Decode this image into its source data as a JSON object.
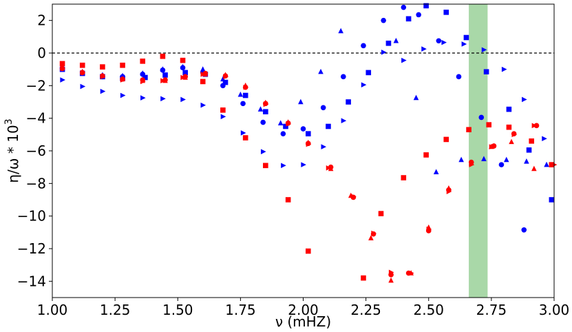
{
  "chart_data": {
    "type": "scatter",
    "xlabel": "ν (mHZ)",
    "ylabel": "η/ω * 10",
    "ylabel_exp": "3",
    "xlim": [
      1.0,
      3.0
    ],
    "ylim": [
      -15,
      3
    ],
    "xticks": [
      1.0,
      1.25,
      1.5,
      1.75,
      2.0,
      2.25,
      2.5,
      2.75,
      3.0
    ],
    "xtick_labels": [
      "1.00",
      "1.25",
      "1.50",
      "1.75",
      "2.00",
      "2.25",
      "2.50",
      "2.75",
      "3.00"
    ],
    "yticks": [
      2,
      0,
      -2,
      -4,
      -6,
      -8,
      -10,
      -12,
      -14
    ],
    "ytick_labels": [
      "2",
      "0",
      "−2",
      "−4",
      "−6",
      "−8",
      "−10",
      "−12",
      "−14"
    ],
    "reference_line": {
      "y": 0,
      "style": "dashed",
      "color": "#000000"
    },
    "shaded_band": {
      "x_start": 2.66,
      "x_end": 2.735,
      "color": "#a9d8a8"
    },
    "grid": false,
    "series": [
      {
        "color": "#0000ff",
        "marker": "circle",
        "points": [
          [
            1.04,
            -0.95
          ],
          [
            1.12,
            -1.2
          ],
          [
            1.2,
            -1.45
          ],
          [
            1.28,
            -1.45
          ],
          [
            1.36,
            -1.3
          ],
          [
            1.44,
            -1.05
          ],
          [
            1.52,
            -0.9
          ],
          [
            1.6,
            -1.2
          ],
          [
            1.68,
            -2.0
          ],
          [
            1.76,
            -3.1
          ],
          [
            1.84,
            -4.25
          ],
          [
            1.92,
            -4.95
          ],
          [
            2.0,
            -4.65
          ],
          [
            2.08,
            -3.35
          ],
          [
            2.16,
            -1.45
          ],
          [
            2.24,
            0.45
          ],
          [
            2.32,
            2.0
          ],
          [
            2.4,
            2.8
          ],
          [
            2.46,
            2.35
          ],
          [
            2.54,
            0.75
          ],
          [
            2.62,
            -1.45
          ],
          [
            2.71,
            -3.95
          ],
          [
            2.79,
            -6.85
          ],
          [
            2.88,
            -10.85
          ]
        ]
      },
      {
        "color": "#0000ff",
        "marker": "square",
        "points": [
          [
            1.04,
            -1.0
          ],
          [
            1.12,
            -1.25
          ],
          [
            1.2,
            -1.45
          ],
          [
            1.28,
            -1.55
          ],
          [
            1.37,
            -1.5
          ],
          [
            1.45,
            -1.35
          ],
          [
            1.53,
            -1.2
          ],
          [
            1.61,
            -1.3
          ],
          [
            1.69,
            -1.8
          ],
          [
            1.77,
            -2.6
          ],
          [
            1.85,
            -3.6
          ],
          [
            1.93,
            -4.5
          ],
          [
            2.02,
            -4.95
          ],
          [
            2.1,
            -4.5
          ],
          [
            2.18,
            -3.0
          ],
          [
            2.26,
            -1.2
          ],
          [
            2.34,
            0.6
          ],
          [
            2.42,
            2.1
          ],
          [
            2.49,
            2.9
          ],
          [
            2.57,
            2.5
          ],
          [
            2.65,
            0.95
          ],
          [
            2.73,
            -1.15
          ],
          [
            2.82,
            -3.45
          ],
          [
            2.9,
            -5.95
          ],
          [
            2.99,
            -9.0
          ]
        ]
      },
      {
        "color": "#0000ff",
        "marker": "triangle-up",
        "points": [
          [
            1.04,
            -0.9
          ],
          [
            1.12,
            -1.15
          ],
          [
            1.2,
            -1.35
          ],
          [
            1.28,
            -1.4
          ],
          [
            1.36,
            -1.25
          ],
          [
            1.44,
            -1.0
          ],
          [
            1.52,
            -0.85
          ],
          [
            1.6,
            -1.0
          ],
          [
            1.68,
            -1.6
          ],
          [
            1.75,
            -2.55
          ],
          [
            1.83,
            -3.45
          ],
          [
            1.91,
            -4.3
          ],
          [
            1.99,
            -3.0
          ],
          [
            2.07,
            -1.15
          ],
          [
            2.15,
            1.35
          ],
          [
            2.37,
            0.75
          ],
          [
            2.45,
            -2.75
          ],
          [
            2.53,
            -7.3
          ],
          [
            2.63,
            -6.55
          ],
          [
            2.72,
            -6.5
          ],
          [
            2.81,
            -6.55
          ],
          [
            2.89,
            -6.65
          ],
          [
            2.97,
            -6.85
          ]
        ]
      },
      {
        "color": "#0000ff",
        "marker": "triangle-right",
        "points": [
          [
            1.04,
            -1.65
          ],
          [
            1.12,
            -2.05
          ],
          [
            1.2,
            -2.35
          ],
          [
            1.28,
            -2.6
          ],
          [
            1.36,
            -2.75
          ],
          [
            1.44,
            -2.8
          ],
          [
            1.52,
            -2.85
          ],
          [
            1.6,
            -3.2
          ],
          [
            1.68,
            -3.9
          ],
          [
            1.76,
            -4.9
          ],
          [
            1.84,
            -6.05
          ],
          [
            1.92,
            -6.9
          ],
          [
            2.0,
            -6.85
          ],
          [
            2.08,
            -5.75
          ],
          [
            2.16,
            -4.15
          ],
          [
            2.24,
            -1.95
          ],
          [
            2.32,
            0.05
          ],
          [
            2.4,
            -0.45
          ],
          [
            2.48,
            0.25
          ],
          [
            2.56,
            0.65
          ],
          [
            2.64,
            0.55
          ],
          [
            2.72,
            0.2
          ],
          [
            2.8,
            -1.0
          ],
          [
            2.88,
            -2.85
          ],
          [
            2.96,
            -5.25
          ]
        ]
      },
      {
        "color": "#ff0000",
        "marker": "circle",
        "points": [
          [
            1.04,
            -0.95
          ],
          [
            1.12,
            -1.2
          ],
          [
            1.2,
            -1.4
          ],
          [
            1.28,
            -1.6
          ],
          [
            1.36,
            -1.65
          ],
          [
            1.45,
            -1.65
          ],
          [
            1.53,
            -1.45
          ],
          [
            1.61,
            -1.25
          ],
          [
            1.69,
            -1.4
          ],
          [
            1.77,
            -2.1
          ],
          [
            1.85,
            -3.1
          ],
          [
            1.94,
            -4.3
          ],
          [
            2.02,
            -5.55
          ],
          [
            2.11,
            -7.0
          ],
          [
            2.2,
            -8.85
          ],
          [
            2.28,
            -11.1
          ],
          [
            2.35,
            -13.6
          ],
          [
            2.42,
            -13.5
          ],
          [
            2.5,
            -10.9
          ],
          [
            2.58,
            -8.4
          ],
          [
            2.67,
            -6.7
          ],
          [
            2.76,
            -5.7
          ],
          [
            2.84,
            -4.95
          ],
          [
            2.93,
            -4.45
          ]
        ]
      },
      {
        "color": "#ff0000",
        "marker": "square",
        "points": [
          [
            1.04,
            -0.65
          ],
          [
            1.12,
            -0.75
          ],
          [
            1.2,
            -0.85
          ],
          [
            1.28,
            -0.75
          ],
          [
            1.36,
            -0.5
          ],
          [
            1.44,
            -0.2
          ],
          [
            1.52,
            -0.45
          ],
          [
            1.6,
            -1.75
          ],
          [
            1.68,
            -3.5
          ],
          [
            1.77,
            -5.2
          ],
          [
            1.85,
            -6.9
          ],
          [
            1.94,
            -9.0
          ],
          [
            2.02,
            -12.15
          ],
          [
            2.24,
            -13.8
          ],
          [
            2.31,
            -9.85
          ],
          [
            2.4,
            -7.65
          ],
          [
            2.49,
            -6.25
          ],
          [
            2.57,
            -5.3
          ],
          [
            2.66,
            -4.7
          ],
          [
            2.74,
            -4.4
          ],
          [
            2.82,
            -4.55
          ],
          [
            2.91,
            -5.4
          ],
          [
            2.99,
            -6.85
          ]
        ]
      },
      {
        "color": "#ff0000",
        "marker": "triangle-up",
        "points": [
          [
            1.04,
            -0.9
          ],
          [
            1.12,
            -1.15
          ],
          [
            1.2,
            -1.4
          ],
          [
            1.28,
            -1.6
          ],
          [
            1.36,
            -1.7
          ],
          [
            1.45,
            -1.7
          ],
          [
            1.53,
            -1.5
          ],
          [
            1.61,
            -1.3
          ],
          [
            1.69,
            -1.35
          ],
          [
            1.77,
            -2.0
          ],
          [
            1.85,
            -3.05
          ],
          [
            1.94,
            -4.25
          ],
          [
            2.02,
            -5.5
          ],
          [
            2.11,
            -7.1
          ],
          [
            2.19,
            -8.75
          ],
          [
            2.27,
            -11.35
          ],
          [
            2.35,
            -13.95
          ],
          [
            2.43,
            -13.5
          ],
          [
            2.5,
            -10.7
          ],
          [
            2.58,
            -8.3
          ],
          [
            2.67,
            -6.75
          ],
          [
            2.75,
            -5.75
          ],
          [
            2.83,
            -5.45
          ],
          [
            2.92,
            -7.1
          ]
        ]
      },
      {
        "color": "#ff0000",
        "marker": "triangle-right",
        "points": [
          [
            1.04,
            -0.95
          ],
          [
            1.12,
            -1.2
          ],
          [
            1.2,
            -1.45
          ],
          [
            1.28,
            -1.65
          ],
          [
            1.36,
            -1.75
          ],
          [
            1.44,
            -1.7
          ],
          [
            1.52,
            -1.5
          ],
          [
            1.6,
            -1.3
          ],
          [
            1.69,
            -1.45
          ],
          [
            1.77,
            -2.1
          ],
          [
            1.85,
            -3.15
          ],
          [
            1.94,
            -4.35
          ],
          [
            2.02,
            -5.6
          ],
          [
            2.1,
            -7.05
          ],
          [
            2.2,
            -8.8
          ],
          [
            2.28,
            -11.05
          ],
          [
            2.35,
            -13.45
          ],
          [
            2.43,
            -13.5
          ],
          [
            2.5,
            -10.8
          ],
          [
            2.58,
            -8.5
          ],
          [
            2.67,
            -6.85
          ],
          [
            2.75,
            -5.75
          ],
          [
            2.84,
            -5.0
          ],
          [
            2.92,
            -4.45
          ],
          [
            3.0,
            -6.85
          ]
        ]
      }
    ]
  }
}
